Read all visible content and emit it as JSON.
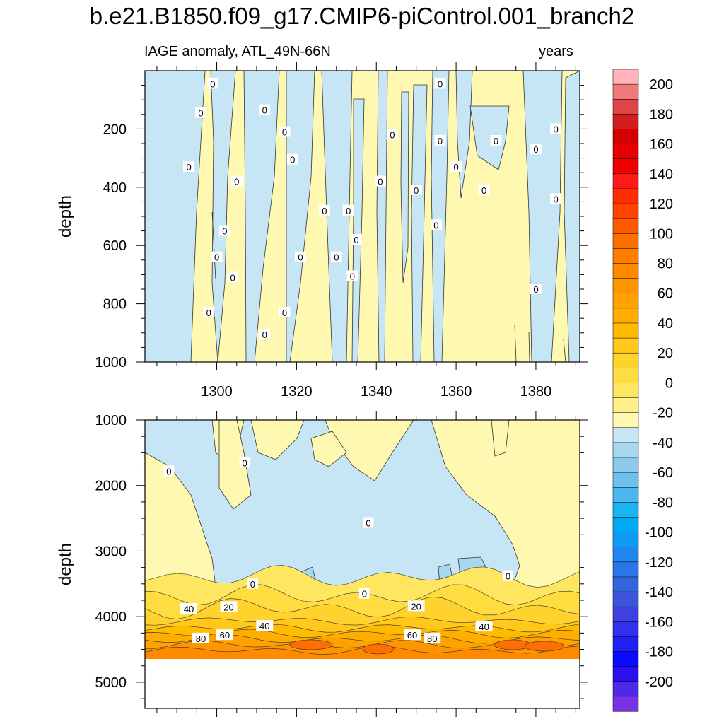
{
  "figure": {
    "title": "b.e21.B1850.f09_g17.CMIP6-piControl.001_branch2",
    "subtitle_left": "IAGE anomaly, ATL_49N-66N",
    "subtitle_right": "years"
  },
  "chart_data": [
    {
      "type": "heatmap",
      "title": "",
      "xlabel": "",
      "ylabel": "depth",
      "xlim": [
        1282,
        1391
      ],
      "ylim": [
        1000,
        0
      ],
      "x_ticks": [
        "1300",
        "1320",
        "1340",
        "1360",
        "1380"
      ],
      "y_ticks": [
        "200",
        "400",
        "600",
        "800",
        "1000"
      ],
      "grid": false,
      "contour_labels": [
        {
          "text": "0",
          "x": 1299,
          "y": 45
        },
        {
          "text": "0",
          "x": 1296,
          "y": 145
        },
        {
          "text": "0",
          "x": 1312,
          "y": 135
        },
        {
          "text": "0",
          "x": 1317,
          "y": 210
        },
        {
          "text": "0",
          "x": 1319,
          "y": 305
        },
        {
          "text": "0",
          "x": 1293,
          "y": 330
        },
        {
          "text": "0",
          "x": 1305,
          "y": 380
        },
        {
          "text": "0",
          "x": 1302,
          "y": 550
        },
        {
          "text": "0",
          "x": 1300,
          "y": 640
        },
        {
          "text": "0",
          "x": 1304,
          "y": 710
        },
        {
          "text": "0",
          "x": 1298,
          "y": 830
        },
        {
          "text": "0",
          "x": 1312,
          "y": 905
        },
        {
          "text": "0",
          "x": 1317,
          "y": 830
        },
        {
          "text": "0",
          "x": 1321,
          "y": 640
        },
        {
          "text": "0",
          "x": 1327,
          "y": 480
        },
        {
          "text": "0",
          "x": 1330,
          "y": 640
        },
        {
          "text": "0",
          "x": 1333,
          "y": 480
        },
        {
          "text": "0",
          "x": 1335,
          "y": 580
        },
        {
          "text": "0",
          "x": 1334,
          "y": 705
        },
        {
          "text": "0",
          "x": 1341,
          "y": 380
        },
        {
          "text": "0",
          "x": 1344,
          "y": 220
        },
        {
          "text": "0",
          "x": 1350,
          "y": 410
        },
        {
          "text": "0",
          "x": 1356,
          "y": 45
        },
        {
          "text": "0",
          "x": 1356,
          "y": 240
        },
        {
          "text": "0",
          "x": 1355,
          "y": 530
        },
        {
          "text": "0",
          "x": 1360,
          "y": 330
        },
        {
          "text": "0",
          "x": 1367,
          "y": 410
        },
        {
          "text": "0",
          "x": 1370,
          "y": 240
        },
        {
          "text": "0",
          "x": 1380,
          "y": 270
        },
        {
          "text": "0",
          "x": 1385,
          "y": 200
        },
        {
          "text": "0",
          "x": 1385,
          "y": 440
        },
        {
          "text": "0",
          "x": 1380,
          "y": 750
        }
      ]
    },
    {
      "type": "heatmap",
      "title": "",
      "xlabel": "",
      "ylabel": "depth",
      "xlim": [
        1282,
        1391
      ],
      "ylim": [
        5400,
        1000
      ],
      "y_ticks": [
        "1000",
        "2000",
        "3000",
        "4000",
        "5000"
      ],
      "grid": false,
      "contour_labels": [
        {
          "text": "0",
          "x": 1288,
          "y": 1780
        },
        {
          "text": "0",
          "x": 1307,
          "y": 1650
        },
        {
          "text": "0",
          "x": 1338,
          "y": 2570
        },
        {
          "text": "0",
          "x": 1309,
          "y": 3500
        },
        {
          "text": "0",
          "x": 1373,
          "y": 3380
        },
        {
          "text": "0",
          "x": 1337,
          "y": 3650
        },
        {
          "text": "20",
          "x": 1303,
          "y": 3850
        },
        {
          "text": "20",
          "x": 1350,
          "y": 3840
        },
        {
          "text": "40",
          "x": 1293,
          "y": 3880
        },
        {
          "text": "40",
          "x": 1312,
          "y": 4140
        },
        {
          "text": "40",
          "x": 1367,
          "y": 4150
        },
        {
          "text": "60",
          "x": 1302,
          "y": 4280
        },
        {
          "text": "60",
          "x": 1349,
          "y": 4280
        },
        {
          "text": "80",
          "x": 1296,
          "y": 4330
        },
        {
          "text": "80",
          "x": 1354,
          "y": 4330
        }
      ]
    }
  ],
  "colorbar": {
    "levels": [
      "200",
      "180",
      "160",
      "140",
      "120",
      "100",
      "80",
      "60",
      "40",
      "20",
      "0",
      "-20",
      "-40",
      "-60",
      "-80",
      "-100",
      "-120",
      "-140",
      "-160",
      "-180",
      "-200"
    ],
    "colors": [
      "#ffb3ba",
      "#f07a7a",
      "#e04545",
      "#d11f1f",
      "#d40000",
      "#e60000",
      "#f00000",
      "#ff1a1a",
      "#ff2e00",
      "#ff4400",
      "#ff5a00",
      "#ff6e00",
      "#ff7e00",
      "#ff8a00",
      "#ff9500",
      "#ffa200",
      "#ffae00",
      "#ffbb00",
      "#ffc81a",
      "#ffd22e",
      "#ffdc40",
      "#ffe660",
      "#fff088",
      "#fff8b0",
      "#c6e5f5",
      "#a8d8f0",
      "#8ccbec",
      "#6ec0ee",
      "#4cb6f0",
      "#1ab5f3",
      "#00aaf5",
      "#0d9bf5",
      "#1f88f0",
      "#2a75e8",
      "#3565dd",
      "#3d55d8",
      "#4040e0",
      "#3030ee",
      "#2020f5",
      "#0a0aff",
      "#2a10f0",
      "#5028e8",
      "#7a30e6"
    ]
  }
}
